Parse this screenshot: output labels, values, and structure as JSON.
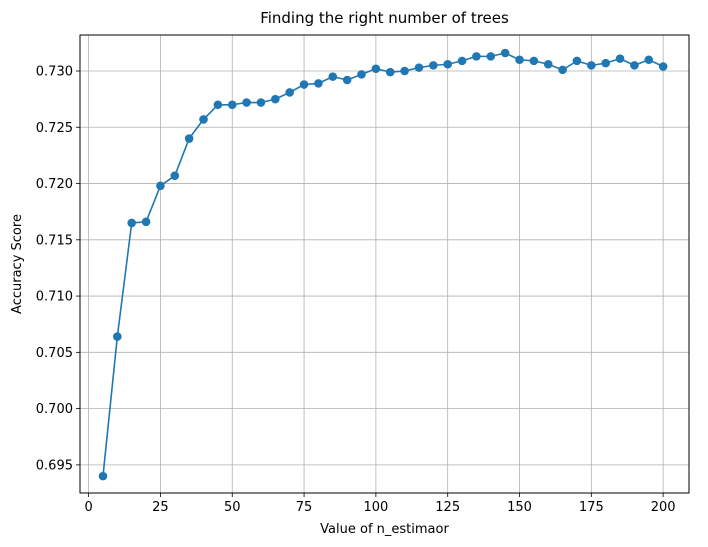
{
  "chart_data": {
    "type": "line",
    "title": "Finding the right number of trees",
    "xlabel": "Value of n_estimaor",
    "ylabel": "Accuracy Score",
    "xlim": [
      -3,
      209
    ],
    "ylim": [
      0.6925,
      0.7332
    ],
    "xticks": [
      0,
      25,
      50,
      75,
      100,
      125,
      150,
      175,
      200
    ],
    "xtick_labels": [
      "0",
      "25",
      "50",
      "75",
      "100",
      "125",
      "150",
      "175",
      "200"
    ],
    "yticks": [
      0.695,
      0.7,
      0.705,
      0.71,
      0.715,
      0.72,
      0.725,
      0.73
    ],
    "ytick_labels": [
      "0.695",
      "0.700",
      "0.705",
      "0.710",
      "0.715",
      "0.720",
      "0.725",
      "0.730"
    ],
    "grid": true,
    "line_color": "#1f77b4",
    "marker": "circle",
    "series": [
      {
        "x": [
          5,
          10,
          15,
          20,
          25,
          30,
          35,
          40,
          45,
          50,
          55,
          60,
          65,
          70,
          75,
          80,
          85,
          90,
          95,
          100,
          105,
          110,
          115,
          120,
          125,
          130,
          135,
          140,
          145,
          150,
          155,
          160,
          165,
          170,
          175,
          180,
          185,
          190,
          195,
          200
        ],
        "values": [
          0.694,
          0.7064,
          0.7165,
          0.7166,
          0.7198,
          0.7207,
          0.724,
          0.7257,
          0.727,
          0.727,
          0.7272,
          0.7272,
          0.7275,
          0.7281,
          0.7288,
          0.7289,
          0.7295,
          0.7292,
          0.7297,
          0.7302,
          0.7299,
          0.73,
          0.7303,
          0.7305,
          0.7306,
          0.7309,
          0.7313,
          0.7313,
          0.7316,
          0.731,
          0.7309,
          0.7306,
          0.7301,
          0.7309,
          0.7305,
          0.7307,
          0.7311,
          0.7305,
          0.731,
          0.7304
        ]
      }
    ]
  }
}
